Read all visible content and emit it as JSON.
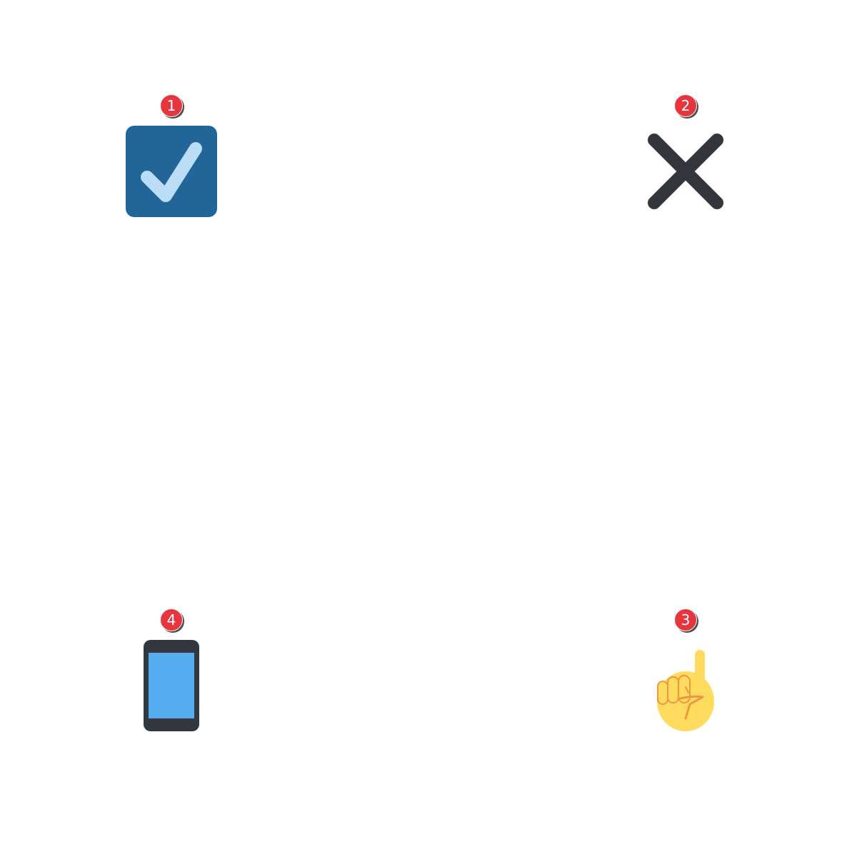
{
  "badges": [
    {
      "number": "1",
      "icon": "check-box-icon",
      "color": "#e8353d"
    },
    {
      "number": "2",
      "icon": "cross-mark-icon",
      "color": "#e8353d"
    },
    {
      "number": "3",
      "icon": "index-pointing-up-icon",
      "color": "#e8353d"
    },
    {
      "number": "4",
      "icon": "mobile-phone-icon",
      "color": "#e8353d"
    }
  ],
  "colors": {
    "checkbox_fill": "#226699",
    "checkmark": "#bbddf5",
    "cross": "#31373d",
    "phone_body": "#31373d",
    "phone_screen": "#55acee",
    "hand_fill": "#ffdc5d",
    "hand_stroke": "#ef9645"
  }
}
